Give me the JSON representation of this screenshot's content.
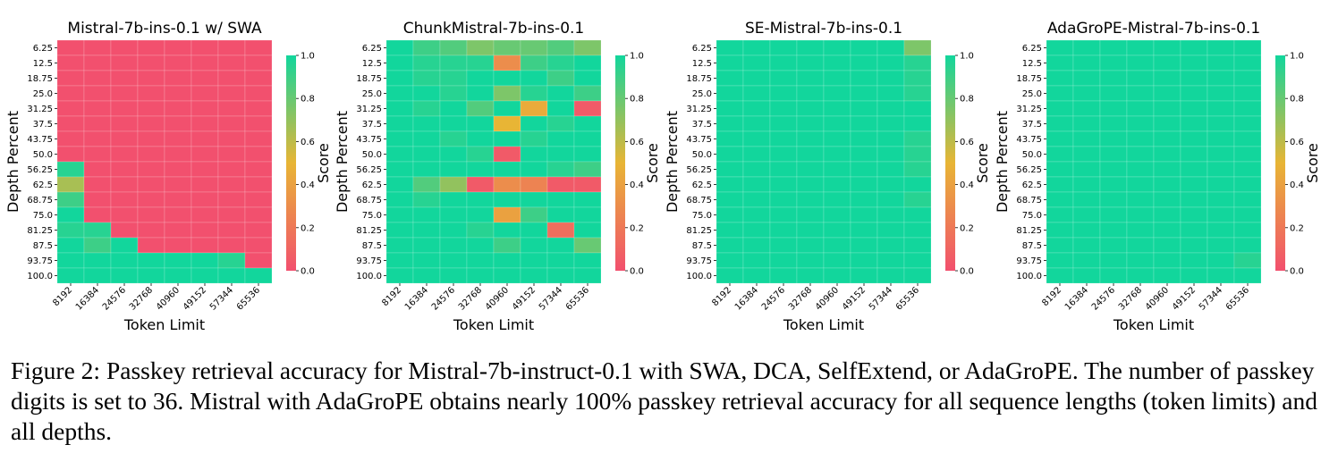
{
  "colors": {
    "low": "#f2506e",
    "mid": "#e8b535",
    "high": "#12d69c"
  },
  "caption": "Figure 2: Passkey retrieval accuracy for Mistral-7b-instruct-0.1 with SWA, DCA, SelfExtend, or AdaGroPE. The number of passkey digits is set to 36. Mistral with AdaGroPE obtains nearly 100% passkey retrieval accuracy for all sequence lengths (token limits) and all depths.",
  "chart_data": [
    {
      "type": "heatmap",
      "title": "Mistral-7b-ins-0.1 w/ SWA",
      "xlabel": "Token Limit",
      "ylabel": "Depth Percent",
      "colorbar_label": "Score",
      "colorbar_ticks": [
        "0.0",
        "0.2",
        "0.4",
        "0.6",
        "0.8",
        "1.0"
      ],
      "vmin": 0,
      "vmax": 1,
      "x": [
        "8192",
        "16384",
        "24576",
        "32768",
        "40960",
        "49152",
        "57344",
        "65536"
      ],
      "y": [
        "6.25",
        "12.5",
        "18.75",
        "25.0",
        "31.25",
        "37.5",
        "43.75",
        "50.0",
        "56.25",
        "62.5",
        "68.75",
        "75.0",
        "81.25",
        "87.5",
        "93.75",
        "100.0"
      ],
      "values": [
        [
          0,
          0,
          0,
          0,
          0,
          0,
          0,
          0
        ],
        [
          0,
          0,
          0,
          0,
          0,
          0,
          0,
          0
        ],
        [
          0,
          0,
          0,
          0,
          0,
          0,
          0,
          0
        ],
        [
          0,
          0,
          0,
          0,
          0,
          0,
          0,
          0
        ],
        [
          0,
          0,
          0,
          0,
          0,
          0,
          0,
          0
        ],
        [
          0,
          0,
          0,
          0,
          0,
          0,
          0,
          0
        ],
        [
          0,
          0,
          0,
          0,
          0,
          0,
          0,
          0
        ],
        [
          0,
          0,
          0,
          0,
          0,
          0,
          0,
          0
        ],
        [
          0.95,
          0,
          0,
          0,
          0,
          0,
          0,
          0
        ],
        [
          0.65,
          0,
          0,
          0,
          0,
          0,
          0,
          0
        ],
        [
          0.9,
          0,
          0,
          0,
          0,
          0,
          0,
          0
        ],
        [
          1,
          0,
          0,
          0,
          0,
          0,
          0,
          0
        ],
        [
          0.95,
          0.95,
          0,
          0,
          0,
          0,
          0,
          0
        ],
        [
          1,
          0.9,
          1,
          0,
          0,
          0,
          0,
          0
        ],
        [
          1,
          1,
          1,
          1,
          1,
          1,
          0.95,
          0
        ],
        [
          1,
          1,
          1,
          1,
          1,
          1,
          1,
          1
        ]
      ]
    },
    {
      "type": "heatmap",
      "title": "ChunkMistral-7b-ins-0.1",
      "xlabel": "Token Limit",
      "ylabel": "Depth Percent",
      "colorbar_label": "Score",
      "colorbar_ticks": [
        "0.0",
        "0.2",
        "0.4",
        "0.6",
        "0.8",
        "1.0"
      ],
      "vmin": 0,
      "vmax": 1,
      "x": [
        "8192",
        "16384",
        "24576",
        "32768",
        "40960",
        "49152",
        "57344",
        "65536"
      ],
      "y": [
        "6.25",
        "12.5",
        "18.75",
        "25.0",
        "31.25",
        "37.5",
        "43.75",
        "50.0",
        "56.25",
        "62.5",
        "68.75",
        "75.0",
        "81.25",
        "87.5",
        "93.75",
        "100.0"
      ],
      "values": [
        [
          1,
          0.9,
          0.85,
          0.75,
          0.8,
          0.8,
          0.85,
          0.75
        ],
        [
          1,
          0.95,
          0.95,
          0.95,
          0.3,
          0.9,
          0.95,
          1
        ],
        [
          1,
          0.95,
          0.95,
          1,
          1,
          1,
          0.9,
          1
        ],
        [
          1,
          1,
          0.95,
          1,
          0.75,
          0.95,
          1,
          0.9
        ],
        [
          1,
          0.95,
          1,
          0.85,
          1,
          0.45,
          1,
          0.05
        ],
        [
          1,
          1,
          1,
          1,
          0.5,
          1,
          0.95,
          1
        ],
        [
          1,
          1,
          0.95,
          1,
          1,
          0.95,
          1,
          1
        ],
        [
          1,
          1,
          1,
          0.95,
          0.05,
          1,
          1,
          1
        ],
        [
          1,
          1,
          1,
          1,
          1,
          1,
          0.95,
          0.9
        ],
        [
          1,
          0.85,
          0.7,
          0.05,
          0.3,
          0.25,
          0.05,
          0.05
        ],
        [
          1,
          0.95,
          1,
          1,
          1,
          1,
          1,
          1
        ],
        [
          1,
          1,
          1,
          1,
          0.4,
          0.9,
          1,
          1
        ],
        [
          1,
          1,
          1,
          0.95,
          1,
          1,
          0.15,
          1
        ],
        [
          1,
          1,
          1,
          1,
          0.9,
          1,
          1,
          0.8
        ],
        [
          1,
          1,
          1,
          1,
          1,
          1,
          1,
          1
        ],
        [
          1,
          1,
          1,
          1,
          1,
          1,
          1,
          1
        ]
      ]
    },
    {
      "type": "heatmap",
      "title": "SE-Mistral-7b-ins-0.1",
      "xlabel": "Token Limit",
      "ylabel": "Depth Percent",
      "colorbar_label": "Score",
      "colorbar_ticks": [
        "0.0",
        "0.2",
        "0.4",
        "0.6",
        "0.8",
        "1.0"
      ],
      "vmin": 0,
      "vmax": 1,
      "x": [
        "8192",
        "16384",
        "24576",
        "32768",
        "40960",
        "49152",
        "57344",
        "65536"
      ],
      "y": [
        "6.25",
        "12.5",
        "18.75",
        "25.0",
        "31.25",
        "37.5",
        "43.75",
        "50.0",
        "56.25",
        "62.5",
        "68.75",
        "75.0",
        "81.25",
        "87.5",
        "93.75",
        "100.0"
      ],
      "values": [
        [
          1,
          1,
          1,
          1,
          1,
          1,
          1,
          0.75
        ],
        [
          1,
          1,
          1,
          1,
          1,
          1,
          1,
          0.95
        ],
        [
          1,
          1,
          1,
          1,
          1,
          1,
          1,
          0.95
        ],
        [
          1,
          1,
          1,
          1,
          1,
          1,
          1,
          0.95
        ],
        [
          1,
          1,
          1,
          1,
          1,
          1,
          1,
          1
        ],
        [
          1,
          1,
          1,
          1,
          1,
          1,
          1,
          1
        ],
        [
          1,
          1,
          1,
          1,
          1,
          1,
          1,
          0.95
        ],
        [
          1,
          1,
          1,
          1,
          1,
          1,
          1,
          0.95
        ],
        [
          1,
          1,
          1,
          1,
          1,
          1,
          1,
          0.95
        ],
        [
          1,
          1,
          1,
          1,
          1,
          1,
          1,
          1
        ],
        [
          1,
          1,
          1,
          1,
          1,
          1,
          1,
          0.95
        ],
        [
          1,
          1,
          1,
          1,
          1,
          1,
          1,
          1
        ],
        [
          1,
          1,
          1,
          1,
          1,
          1,
          1,
          1
        ],
        [
          1,
          1,
          1,
          1,
          1,
          1,
          1,
          1
        ],
        [
          1,
          1,
          1,
          1,
          1,
          1,
          1,
          1
        ],
        [
          1,
          1,
          1,
          1,
          1,
          1,
          1,
          1
        ]
      ]
    },
    {
      "type": "heatmap",
      "title": "AdaGroPE-Mistral-7b-ins-0.1",
      "xlabel": "Token Limit",
      "ylabel": "Depth Percent",
      "colorbar_label": "Score",
      "colorbar_ticks": [
        "0.0",
        "0.2",
        "0.4",
        "0.6",
        "0.8",
        "1.0"
      ],
      "vmin": 0,
      "vmax": 1,
      "x": [
        "8192",
        "16384",
        "24576",
        "32768",
        "40960",
        "49152",
        "57344",
        "65536"
      ],
      "y": [
        "6.25",
        "12.5",
        "18.75",
        "25.0",
        "31.25",
        "37.5",
        "43.75",
        "50.0",
        "56.25",
        "62.5",
        "68.75",
        "75.0",
        "81.25",
        "87.5",
        "93.75",
        "100.0"
      ],
      "values": [
        [
          1,
          1,
          1,
          1,
          1,
          1,
          1,
          1
        ],
        [
          1,
          1,
          1,
          1,
          1,
          1,
          1,
          1
        ],
        [
          1,
          1,
          1,
          1,
          1,
          1,
          1,
          1
        ],
        [
          1,
          1,
          1,
          1,
          1,
          1,
          1,
          1
        ],
        [
          1,
          1,
          1,
          1,
          1,
          1,
          1,
          1
        ],
        [
          1,
          1,
          1,
          1,
          1,
          1,
          1,
          1
        ],
        [
          1,
          1,
          1,
          1,
          1,
          1,
          1,
          1
        ],
        [
          1,
          1,
          1,
          1,
          1,
          1,
          1,
          1
        ],
        [
          1,
          1,
          1,
          1,
          1,
          1,
          1,
          1
        ],
        [
          1,
          1,
          1,
          1,
          1,
          1,
          1,
          1
        ],
        [
          1,
          1,
          1,
          1,
          1,
          1,
          1,
          1
        ],
        [
          1,
          1,
          1,
          1,
          1,
          1,
          1,
          1
        ],
        [
          1,
          1,
          1,
          1,
          1,
          1,
          1,
          1
        ],
        [
          1,
          1,
          1,
          1,
          1,
          1,
          1,
          1
        ],
        [
          1,
          1,
          1,
          1,
          1,
          1,
          1,
          0.95
        ],
        [
          1,
          1,
          1,
          1,
          1,
          1,
          1,
          1
        ]
      ]
    }
  ]
}
